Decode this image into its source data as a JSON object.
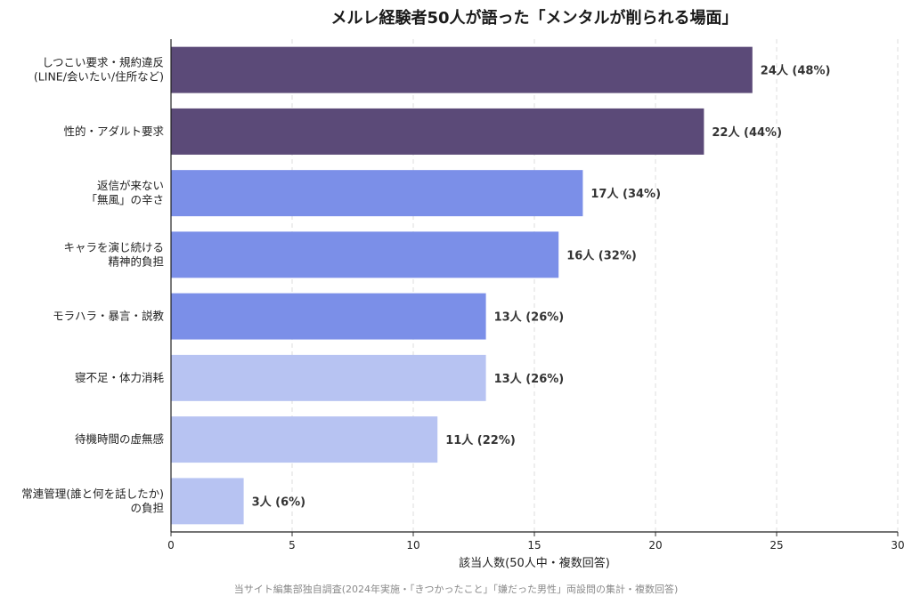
{
  "chart_data": {
    "type": "bar",
    "orientation": "horizontal",
    "title": "メルレ経験者50人が語った「メンタルが削られる場面」",
    "xlabel": "該当人数(50人中・複数回答)",
    "ylabel": "",
    "source_note": "当サイト編集部独自調査(2024年実施・「きつかったこと」「嫌だった男性」両設問の集計・複数回答)",
    "xlim": [
      0,
      30
    ],
    "xticks": [
      0,
      5,
      10,
      15,
      20,
      25,
      30
    ],
    "grid": "x-dashed",
    "categories": [
      [
        "しつこい要求・規約違反",
        "(LINE/会いたい/住所など)"
      ],
      [
        "性的・アダルト要求"
      ],
      [
        "返信が来ない",
        "「無風」の辛さ"
      ],
      [
        "キャラを演じ続ける",
        "精神的負担"
      ],
      [
        "モラハラ・暴言・説教"
      ],
      [
        "寝不足・体力消耗"
      ],
      [
        "待機時間の虚無感"
      ],
      [
        "常連管理(誰と何を話したか)",
        "の負担"
      ]
    ],
    "values": [
      24,
      22,
      17,
      16,
      13,
      13,
      11,
      3
    ],
    "value_labels": [
      "24人 (48%)",
      "22人 (44%)",
      "17人 (34%)",
      "16人 (32%)",
      "13人 (26%)",
      "13人 (26%)",
      "11人 (22%)",
      "3人 (6%)"
    ],
    "colors": [
      "#5b4a78",
      "#5b4a78",
      "#7b8fe8",
      "#7b8fe8",
      "#7b8fe8",
      "#b7c3f2",
      "#b7c3f2",
      "#b7c3f2"
    ]
  }
}
